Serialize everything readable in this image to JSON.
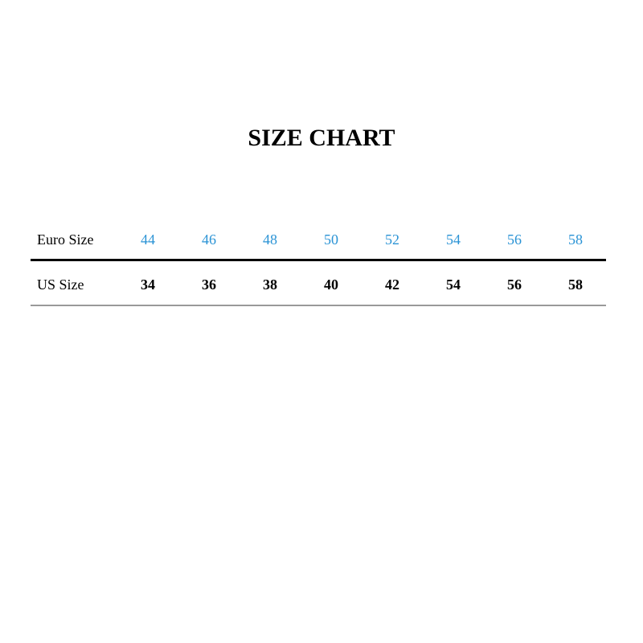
{
  "title": "SIZE CHART",
  "table": {
    "euro": {
      "label": "Euro Size",
      "values": [
        "44",
        "46",
        "48",
        "50",
        "52",
        "54",
        "56",
        "58"
      ]
    },
    "us": {
      "label": "US Size",
      "values": [
        "34",
        "36",
        "38",
        "40",
        "42",
        "54",
        "56",
        "58"
      ]
    }
  },
  "colors": {
    "euro_values": "#2a93d5",
    "text": "#000000"
  }
}
